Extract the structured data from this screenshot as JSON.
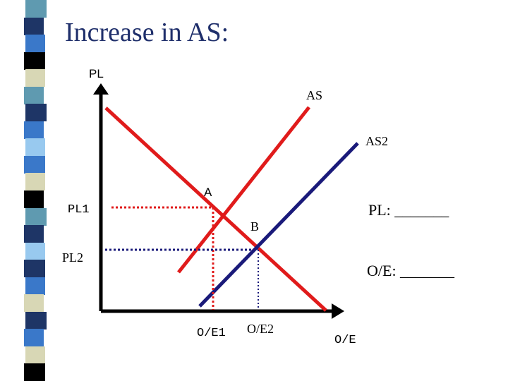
{
  "title": "Increase in AS:",
  "colors": {
    "title": "#1f2f6b",
    "demand_line": "#e01b1b",
    "as_line": "#e01b1b",
    "as2_line": "#1a1a7a",
    "axis": "#000000",
    "pl1_guide": "#e01b1b",
    "pl2_guide": "#1a1a7a"
  },
  "sidebar_stripes": [
    "#5f9ab0",
    "#1e3566",
    "#3a78c9",
    "#000000",
    "#d8d7b5",
    "#5f9ab0",
    "#1e3566",
    "#3a78c9",
    "#98c9ef",
    "#3a78c9",
    "#d8d7b5",
    "#000000",
    "#5f9ab0",
    "#1e3566",
    "#98c9ef",
    "#1e3566",
    "#3a78c9",
    "#d8d7b5",
    "#1e3566",
    "#3a78c9",
    "#d8d7b5",
    "#000000"
  ],
  "labels": {
    "y_axis": "PL",
    "x_axis": "O/E",
    "as": "AS",
    "as2": "AS2",
    "point_a": "A",
    "point_b": "B",
    "pl1": "PL1",
    "pl2": "PL2",
    "oe1": "O/E1",
    "oe2": "O/E2",
    "pl_question": "PL: _______",
    "oe_question": "O/E: _______"
  }
}
